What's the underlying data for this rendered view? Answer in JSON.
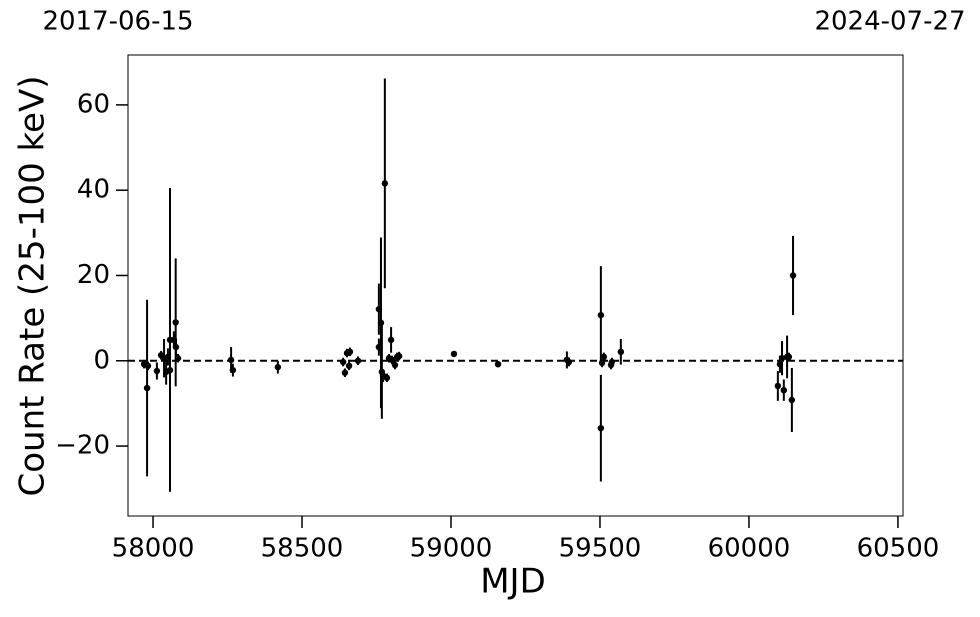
{
  "chart_data": {
    "type": "errorbar",
    "xlabel": "MJD",
    "ylabel": "Count Rate (25-100 keV)",
    "annotations": [
      "2017-06-15",
      "2024-07-27"
    ],
    "x": [
      57970,
      57980,
      57983,
      58013,
      58027,
      58037,
      58044,
      58050,
      58057,
      58057,
      58070,
      58076,
      58077,
      58084,
      58262,
      58268,
      58419,
      58638,
      58644,
      58651,
      58658,
      58661,
      58688,
      58758,
      58758,
      58765,
      58768,
      58778,
      58772,
      58785,
      58792,
      58799,
      58802,
      58812,
      58819,
      58826,
      59010,
      59158,
      59389,
      59396,
      59503,
      59503,
      59507,
      59513,
      59537,
      59540,
      59570,
      60097,
      60104,
      60111,
      60117,
      60128,
      60134,
      60144,
      60148
    ],
    "values": [
      -0.8,
      -6.4,
      -1.2,
      -2.4,
      1.3,
      0.6,
      -2.6,
      0.9,
      4.9,
      -2.2,
      4.9,
      9.0,
      3.2,
      0.6,
      0.2,
      -2.2,
      -1.5,
      -0.3,
      -2.8,
      1.8,
      -1.2,
      2.1,
      0,
      12.1,
      3.2,
      8.9,
      -2.6,
      41.6,
      -3.5,
      -4.0,
      0.6,
      4.9,
      0.2,
      -1.0,
      0.9,
      1.1,
      1.6,
      -0.8,
      0.2,
      -0.3,
      10.7,
      -15.8,
      -0.5,
      0.9,
      -1.0,
      -0.3,
      2.1,
      -5.9,
      -0.8,
      0.6,
      -6.9,
      0.9,
      0.9,
      -9.2,
      20.0
    ],
    "errors": [
      1,
      20.7,
      1,
      2,
      1,
      4.5,
      3,
      2,
      35.6,
      2,
      2,
      15,
      2,
      1,
      3,
      1.5,
      1.5,
      1,
      1,
      1,
      1,
      1,
      1,
      6,
      2,
      20,
      11,
      24.6,
      1.5,
      1,
      1,
      3,
      1,
      1,
      1,
      1,
      0.7,
      0.7,
      2,
      1,
      11.5,
      12.5,
      1,
      1,
      1,
      1,
      3,
      3.5,
      2,
      4,
      2.5,
      5,
      1,
      7.5,
      9.3
    ],
    "color": "#000000",
    "hline": 0,
    "xlim": [
      57916,
      60517
    ],
    "ylim": [
      -36.4,
      71.7
    ],
    "xticks": [
      58000,
      58500,
      59000,
      59500,
      60000,
      60500
    ],
    "yticks": [
      {
        "value": -20,
        "label": "−20"
      },
      0,
      20,
      40,
      60
    ]
  }
}
